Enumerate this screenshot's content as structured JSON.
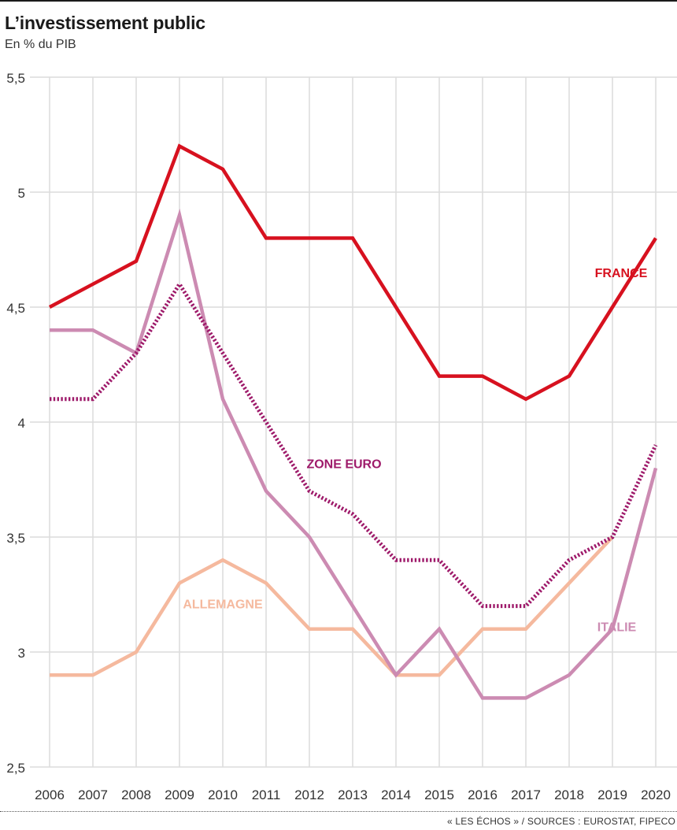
{
  "title": "L’investissement public",
  "subtitle": "En % du PIB",
  "source": "« LES ÉCHOS » / SOURCES : EUROSTAT, FIPECO",
  "chart_data": {
    "type": "line",
    "title": "L’investissement public",
    "ylabel": "En % du PIB",
    "xlabel": "",
    "x": [
      2006,
      2007,
      2008,
      2009,
      2010,
      2011,
      2012,
      2013,
      2014,
      2015,
      2016,
      2017,
      2018,
      2019,
      2020
    ],
    "ylim": [
      2.5,
      5.5
    ],
    "yticks": [
      2.5,
      3,
      3.5,
      4,
      4.5,
      5,
      5.5
    ],
    "ytick_labels": [
      "2,5",
      "3",
      "3,5",
      "4",
      "4,5",
      "5",
      "5,5"
    ],
    "grid": true,
    "legend": "inline labels",
    "series": [
      {
        "name": "FRANCE",
        "color": "#d7111f",
        "style": "solid",
        "values": [
          4.5,
          4.6,
          4.7,
          5.2,
          5.1,
          4.8,
          4.8,
          4.8,
          4.5,
          4.2,
          4.2,
          4.1,
          4.2,
          4.5,
          4.8
        ]
      },
      {
        "name": "ITALIE",
        "color": "#cc8bb2",
        "style": "solid",
        "values": [
          4.4,
          4.4,
          4.3,
          4.9,
          4.1,
          3.7,
          3.5,
          3.2,
          2.9,
          3.1,
          2.8,
          2.8,
          2.9,
          3.1,
          3.8
        ]
      },
      {
        "name": "ALLEMAGNE",
        "color": "#f5b99e",
        "style": "solid",
        "values": [
          2.9,
          2.9,
          3.0,
          3.3,
          3.4,
          3.3,
          3.1,
          3.1,
          2.9,
          2.9,
          3.1,
          3.1,
          3.3,
          3.5,
          null
        ]
      },
      {
        "name": "ZONE EURO",
        "color": "#9e1a6a",
        "style": "dotted",
        "values": [
          4.1,
          4.1,
          4.3,
          4.6,
          4.3,
          4.0,
          3.7,
          3.6,
          3.4,
          3.4,
          3.2,
          3.2,
          3.4,
          3.5,
          3.9
        ]
      }
    ]
  }
}
